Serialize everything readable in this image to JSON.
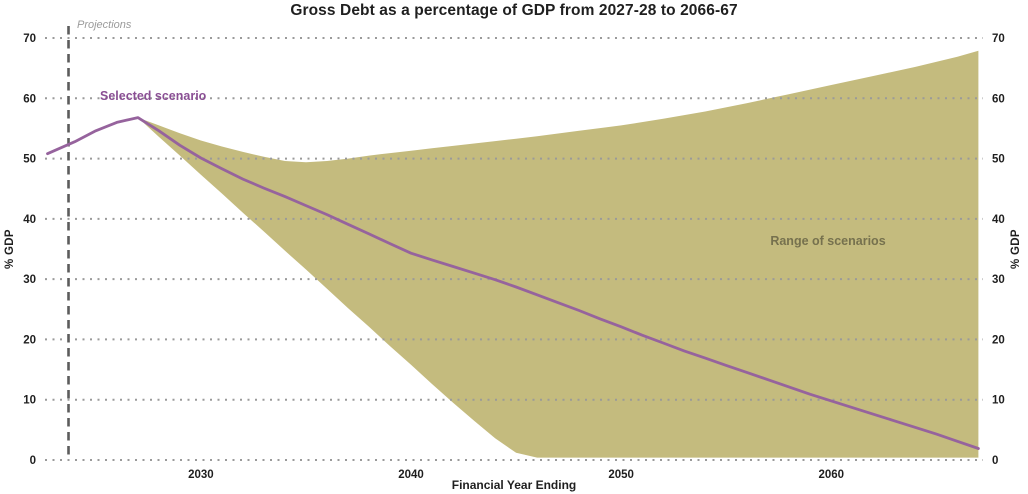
{
  "colors": {
    "selected_line": "#96639d",
    "selected_label": "#8a4f94",
    "range_area": "#c4bb7e",
    "range_label": "#76714e",
    "gridline": "#9a9a9a",
    "projection_line": "#5c5c5c",
    "text": "#1f1f1f",
    "projections_label": "#9b9b9b",
    "background": "#ffffff"
  },
  "chart_data": {
    "type": "area",
    "title": "Gross Debt as a percentage of GDP from 2027-28 to 2066-67",
    "xlabel": "Financial Year Ending",
    "ylabel": "% GDP",
    "xlim": [
      2022.6,
      2067.2
    ],
    "ylim": [
      0,
      70
    ],
    "x_ticks": [
      2030,
      2040,
      2050,
      2060
    ],
    "y_ticks": [
      0,
      10,
      20,
      30,
      40,
      50,
      60,
      70
    ],
    "grid": "dotted horizontal gridlines, y labels on both sides",
    "legend_position": "inline annotations",
    "projections_boundary_x": 2023.7,
    "annotations": {
      "projections": "Projections"
    },
    "series": [
      {
        "name": "Selected scenario",
        "type": "line",
        "color": "#96639d",
        "x": [
          2022.7,
          2024,
          2025,
          2026,
          2027,
          2028,
          2029,
          2030,
          2031,
          2032,
          2033,
          2034,
          2035,
          2036,
          2037,
          2038,
          2039,
          2040,
          2041,
          2042,
          2043,
          2044,
          2045,
          2046,
          2047,
          2048,
          2049,
          2050,
          2051,
          2052,
          2053,
          2054,
          2055,
          2056,
          2057,
          2058,
          2059,
          2060,
          2061,
          2062,
          2063,
          2064,
          2065,
          2066,
          2067
        ],
        "y": [
          50.8,
          52.8,
          54.6,
          56.0,
          56.8,
          54.6,
          52.2,
          50.1,
          48.3,
          46.6,
          45.1,
          43.7,
          42.2,
          40.7,
          39.1,
          37.5,
          35.9,
          34.3,
          33.2,
          32.1,
          31.0,
          29.9,
          28.7,
          27.4,
          26.1,
          24.8,
          23.4,
          22.1,
          20.7,
          19.4,
          18.1,
          16.9,
          15.7,
          14.5,
          13.3,
          12.1,
          10.9,
          9.8,
          8.7,
          7.6,
          6.5,
          5.4,
          4.3,
          3.1,
          1.9
        ]
      },
      {
        "name": "Range of scenarios",
        "type": "band",
        "color": "#c4bb7e",
        "x": [
          2027,
          2028,
          2029,
          2030,
          2031,
          2032,
          2033,
          2034,
          2035,
          2036,
          2037,
          2038,
          2039,
          2040,
          2041,
          2042,
          2043,
          2044,
          2045,
          2046,
          2048,
          2050,
          2052,
          2054,
          2056,
          2058,
          2060,
          2062,
          2064,
          2066,
          2067
        ],
        "upper": [
          56.8,
          55.5,
          54.2,
          53.0,
          52.0,
          51.1,
          50.3,
          49.6,
          49.4,
          49.6,
          50.0,
          50.5,
          50.9,
          51.3,
          51.7,
          52.1,
          52.5,
          52.9,
          53.3,
          53.7,
          54.6,
          55.5,
          56.6,
          57.8,
          59.2,
          60.7,
          62.2,
          63.7,
          65.2,
          66.9,
          67.9
        ],
        "lower": [
          56.8,
          53.6,
          50.5,
          47.3,
          44.2,
          41.0,
          37.9,
          34.7,
          31.6,
          28.4,
          25.2,
          22.1,
          18.9,
          15.8,
          12.6,
          9.5,
          6.5,
          3.6,
          1.2,
          0.4,
          0.4,
          0.4,
          0.4,
          0.4,
          0.4,
          0.4,
          0.4,
          0.4,
          0.4,
          0.4,
          0.4
        ]
      }
    ]
  }
}
